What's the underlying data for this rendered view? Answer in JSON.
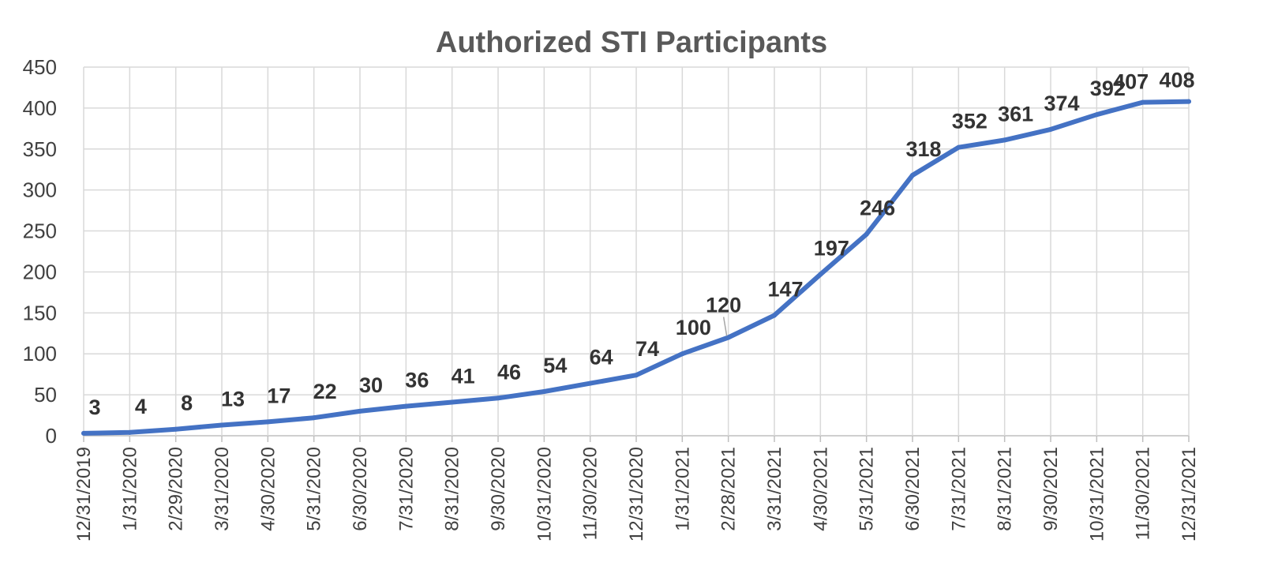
{
  "chart_data": {
    "type": "line",
    "title": "Authorized STI Participants",
    "xlabel": "",
    "ylabel": "",
    "ylim": [
      0,
      450
    ],
    "yticks": [
      0,
      50,
      100,
      150,
      200,
      250,
      300,
      350,
      400,
      450
    ],
    "categories": [
      "12/31/2019",
      "1/31/2020",
      "2/29/2020",
      "3/31/2020",
      "4/30/2020",
      "5/31/2020",
      "6/30/2020",
      "7/31/2020",
      "8/31/2020",
      "9/30/2020",
      "10/31/2020",
      "11/30/2020",
      "12/31/2020",
      "1/31/2021",
      "2/28/2021",
      "3/31/2021",
      "4/30/2021",
      "5/31/2021",
      "6/30/2021",
      "7/31/2021",
      "8/31/2021",
      "9/30/2021",
      "10/31/2021",
      "11/30/2021",
      "12/31/2021"
    ],
    "series": [
      {
        "values": [
          3,
          4,
          8,
          13,
          17,
          22,
          30,
          36,
          41,
          46,
          54,
          64,
          74,
          100,
          120,
          147,
          197,
          246,
          318,
          352,
          361,
          374,
          392,
          407,
          408
        ]
      }
    ],
    "grid": true,
    "legend": "none",
    "colors": {
      "line": "#4472C4",
      "grid": "#d9d9d9"
    }
  }
}
